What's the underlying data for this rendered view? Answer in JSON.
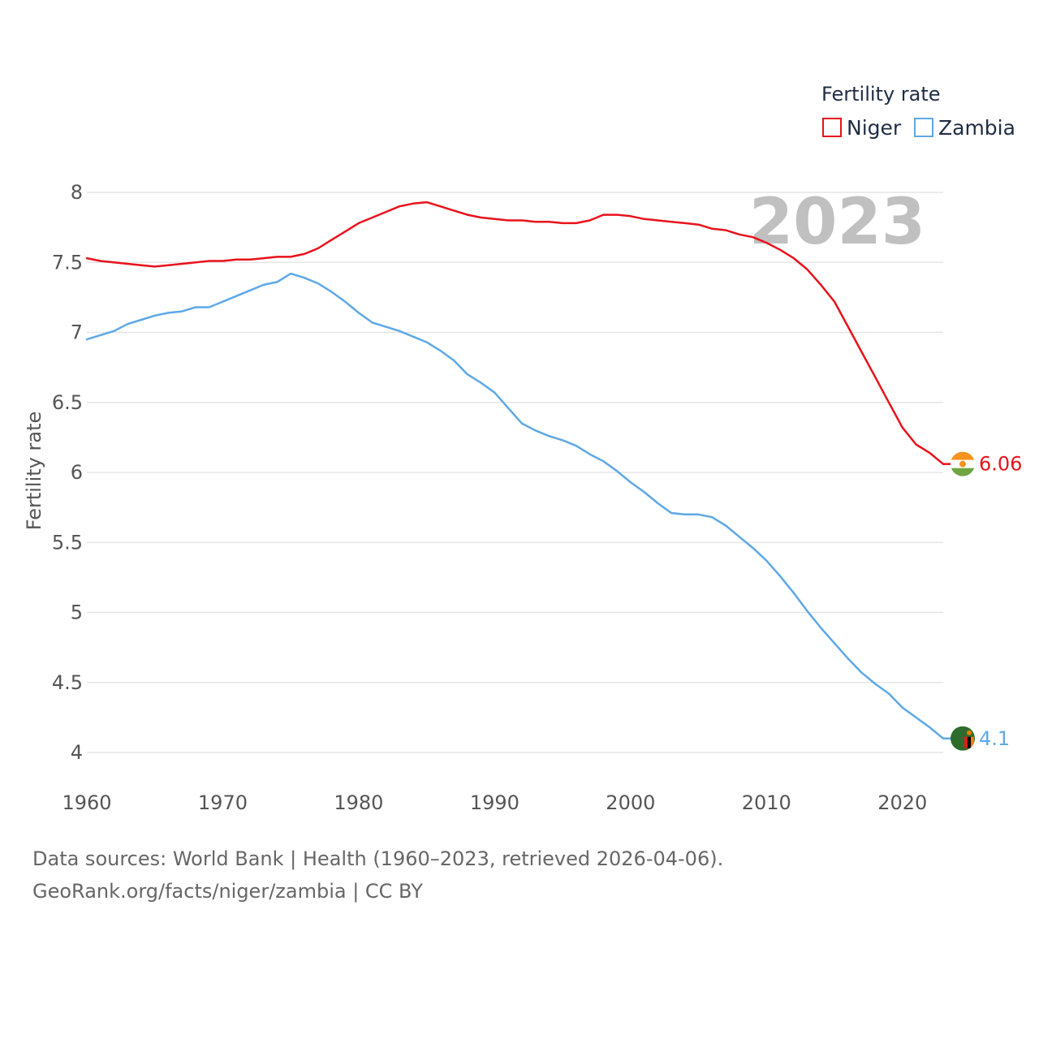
{
  "chart_data": {
    "type": "line",
    "year_label": "2023",
    "ylabel": "Fertility rate",
    "xlabel": "",
    "xlim": [
      1960,
      2023
    ],
    "ylim": [
      4,
      8
    ],
    "x_ticks": [
      1960,
      1970,
      1980,
      1990,
      2000,
      2010,
      2020
    ],
    "y_ticks": [
      4,
      4.5,
      5,
      5.5,
      6,
      6.5,
      7,
      7.5,
      8
    ],
    "y_tick_labels": [
      "4",
      "4.5",
      "5",
      "5.5",
      "6",
      "6.5",
      "7",
      "7.5",
      "8"
    ],
    "grid": true,
    "legend": {
      "title": "Fertility rate",
      "placement": "top-right"
    },
    "x": [
      1960,
      1961,
      1962,
      1963,
      1964,
      1965,
      1966,
      1967,
      1968,
      1969,
      1970,
      1971,
      1972,
      1973,
      1974,
      1975,
      1976,
      1977,
      1978,
      1979,
      1980,
      1981,
      1982,
      1983,
      1984,
      1985,
      1986,
      1987,
      1988,
      1989,
      1990,
      1991,
      1992,
      1993,
      1994,
      1995,
      1996,
      1997,
      1998,
      1999,
      2000,
      2001,
      2002,
      2003,
      2004,
      2005,
      2006,
      2007,
      2008,
      2009,
      2010,
      2011,
      2012,
      2013,
      2014,
      2015,
      2016,
      2017,
      2018,
      2019,
      2020,
      2021,
      2022,
      2023
    ],
    "series": [
      {
        "name": "Niger",
        "color": "#e8121b",
        "end_label": "6.06",
        "values": [
          7.53,
          7.51,
          7.5,
          7.49,
          7.48,
          7.47,
          7.48,
          7.49,
          7.5,
          7.51,
          7.51,
          7.52,
          7.52,
          7.53,
          7.54,
          7.54,
          7.56,
          7.6,
          7.66,
          7.72,
          7.78,
          7.82,
          7.86,
          7.9,
          7.92,
          7.93,
          7.9,
          7.87,
          7.84,
          7.82,
          7.81,
          7.8,
          7.8,
          7.79,
          7.79,
          7.78,
          7.78,
          7.8,
          7.84,
          7.84,
          7.83,
          7.81,
          7.8,
          7.79,
          7.78,
          7.77,
          7.74,
          7.73,
          7.7,
          7.68,
          7.64,
          7.59,
          7.53,
          7.45,
          7.34,
          7.22,
          7.04,
          6.86,
          6.68,
          6.5,
          6.32,
          6.2,
          6.14,
          6.06
        ]
      },
      {
        "name": "Zambia",
        "color": "#5ea8e6",
        "end_label": "4.1",
        "values": [
          6.95,
          6.98,
          7.01,
          7.06,
          7.09,
          7.12,
          7.14,
          7.15,
          7.18,
          7.18,
          7.22,
          7.26,
          7.3,
          7.34,
          7.36,
          7.42,
          7.39,
          7.35,
          7.29,
          7.22,
          7.14,
          7.07,
          7.04,
          7.01,
          6.97,
          6.93,
          6.87,
          6.8,
          6.7,
          6.64,
          6.57,
          6.46,
          6.35,
          6.3,
          6.26,
          6.23,
          6.19,
          6.13,
          6.08,
          6.01,
          5.93,
          5.86,
          5.78,
          5.71,
          5.7,
          5.7,
          5.68,
          5.62,
          5.54,
          5.46,
          5.37,
          5.26,
          5.14,
          5.01,
          4.89,
          4.78,
          4.67,
          4.57,
          4.49,
          4.42,
          4.32,
          4.25,
          4.18,
          4.1
        ]
      }
    ]
  },
  "footer": {
    "line1": "Data sources: World Bank | Health (1960–2023, retrieved 2026-04-06).",
    "line2": "GeoRank.org/facts/niger/zambia | CC BY"
  },
  "flags": [
    {
      "name": "niger-flag-icon",
      "colors": [
        "#f7931e",
        "#ffffff",
        "#6fa544"
      ]
    },
    {
      "name": "zambia-flag-icon",
      "colors": [
        "#2f6b2c",
        "#de2010",
        "#000000",
        "#ef7d00"
      ]
    }
  ]
}
